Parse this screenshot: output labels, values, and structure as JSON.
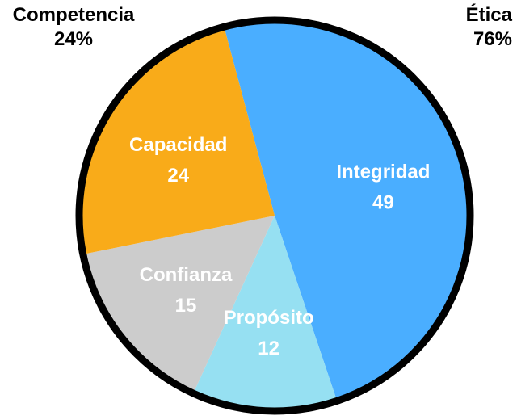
{
  "groups": {
    "left": {
      "name": "Competencia",
      "percent": "24%"
    },
    "right": {
      "name": "Ética",
      "percent": "76%"
    }
  },
  "chart_data": {
    "type": "pie",
    "start_angle_deg": -15,
    "direction": "clockwise",
    "slices": [
      {
        "label": "Integridad",
        "value": 49,
        "color": "#4aaeff",
        "text_color": "#ffffff"
      },
      {
        "label": "Propósito",
        "value": 12,
        "color": "#96e0f2",
        "text_color": "#ffffff"
      },
      {
        "label": "Confianza",
        "value": 15,
        "color": "#cccccc",
        "text_color": "#ffffff"
      },
      {
        "label": "Capacidad",
        "value": 24,
        "color": "#f9ab19",
        "text_color": "#ffffff"
      }
    ],
    "outline_color": "#000000"
  }
}
